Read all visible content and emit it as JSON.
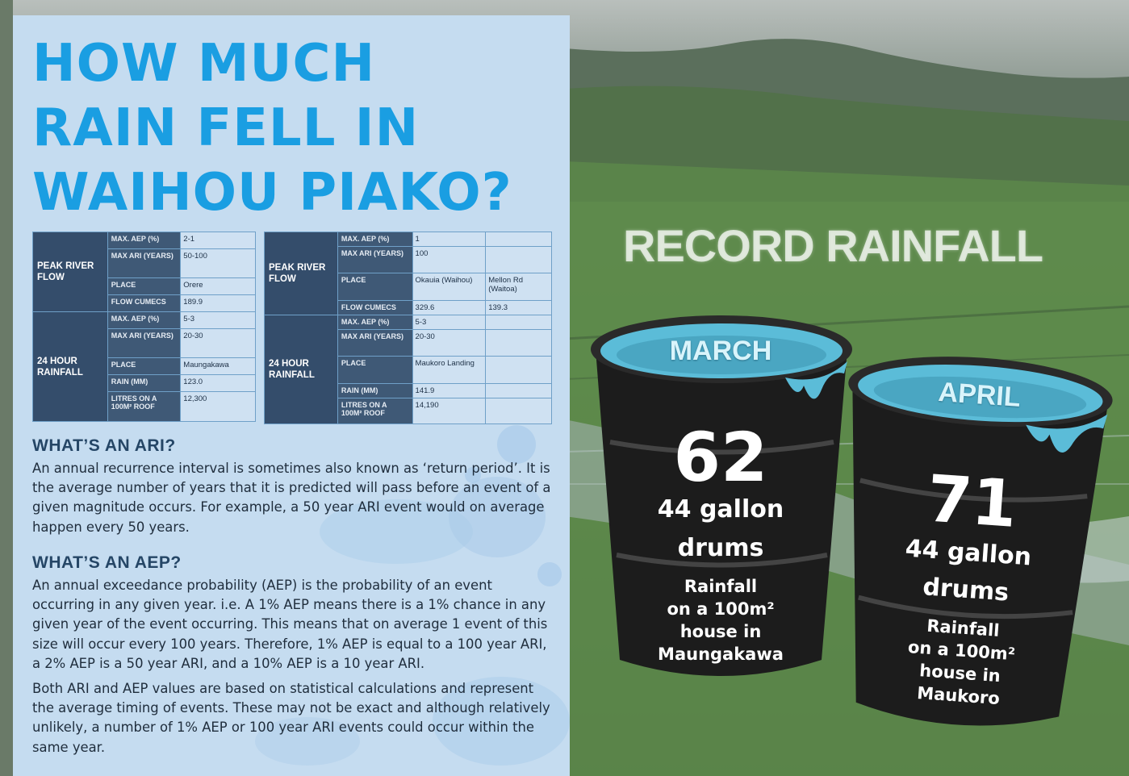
{
  "title_lines": [
    "HOW MUCH",
    "RAIN FELL IN",
    "WAIHOU PIAKO?"
  ],
  "table_left": {
    "peak_group": "PEAK RIVER FLOW",
    "rain_group": "24 HOUR RAINFALL",
    "rows": {
      "max_aep": {
        "label": "MAX. AEP (%)",
        "value": "2-1"
      },
      "max_ari": {
        "label": "MAX ARI (YEARS)",
        "value": "50-100"
      },
      "place": {
        "label": "PLACE",
        "value": "Orere"
      },
      "flow": {
        "label": "FLOW CUMECS",
        "value": "189.9"
      },
      "r_max_aep": {
        "label": "MAX. AEP (%)",
        "value": "5-3"
      },
      "r_max_ari": {
        "label": "MAX ARI (YEARS)",
        "value": "20-30"
      },
      "r_place": {
        "label": "PLACE",
        "value": "Maungakawa"
      },
      "rain": {
        "label": "RAIN (MM)",
        "value": "123.0"
      },
      "litres": {
        "label": "LITRES ON A 100M² ROOF",
        "value": "12,300"
      }
    }
  },
  "table_right": {
    "peak_group": "PEAK RIVER FLOW",
    "rain_group": "24 HOUR RAINFALL",
    "rows": {
      "max_aep": {
        "label": "MAX. AEP (%)",
        "value": "1",
        "value2": ""
      },
      "max_ari": {
        "label": "MAX ARI (YEARS)",
        "value": "100",
        "value2": ""
      },
      "place": {
        "label": "PLACE",
        "value": "Okauia (Waihou)",
        "value2": "Mellon Rd (Waitoa)"
      },
      "flow": {
        "label": "FLOW CUMECS",
        "value": "329.6",
        "value2": "139.3"
      },
      "r_max_aep": {
        "label": "MAX. AEP (%)",
        "value": "5-3",
        "value2": ""
      },
      "r_max_ari": {
        "label": "MAX ARI (YEARS)",
        "value": "20-30",
        "value2": ""
      },
      "r_place": {
        "label": "PLACE",
        "value": "Maukoro Landing",
        "value2": ""
      },
      "rain": {
        "label": "RAIN (MM)",
        "value": "141.9",
        "value2": ""
      },
      "litres": {
        "label": "LITRES ON A 100M² ROOF",
        "value": "14,190",
        "value2": ""
      }
    }
  },
  "ari": {
    "heading": "WHAT’S AN ARI?",
    "text": "An annual recurrence interval is sometimes also known as ‘return period’. It is the average number of years that it is predicted will pass before an event of a given magnitude occurs. For example, a 50 year ARI event would on average happen every 50 years."
  },
  "aep": {
    "heading": "WHAT’S AN AEP?",
    "text1": "An annual exceedance probability (AEP) is the probability of an event occurring in any given year.  i.e. A 1% AEP means there is a 1% chance in any given year of the event occurring. This means that on average 1 event of this size will occur every 100 years. Therefore, 1% AEP is equal to a 100 year ARI, a 2% AEP is a 50 year ARI, and a 10% AEP is a 10 year ARI.",
    "text2": "Both ARI and AEP values are based on statistical calculations and represent the average timing of events. These may not be exact and although relatively unlikely, a number of 1% AEP or 100 year ARI events could occur within the same year."
  },
  "record_heading": "RECORD RAINFALL",
  "barrels": {
    "march": {
      "month": "MARCH",
      "count": "62",
      "unit_line1": "44 gallon",
      "unit_line2": "drums",
      "desc_line1": "Rainfall",
      "desc_line2": "on a 100m²",
      "desc_line3": "house in",
      "desc_line4": "Maungakawa"
    },
    "april": {
      "month": "APRIL",
      "count": "71",
      "unit_line1": "44 gallon",
      "unit_line2": "drums",
      "desc_line1": "Rainfall",
      "desc_line2": "on a 100m²",
      "desc_line3": "house in",
      "desc_line4": "Maukoro"
    }
  },
  "colors": {
    "panel": "#c5dcf0",
    "title": "#1a9ee2",
    "table_header": "#344d6b",
    "heading": "#254666",
    "barrel": "#1c1c1c",
    "water": "#4fb3cf"
  }
}
